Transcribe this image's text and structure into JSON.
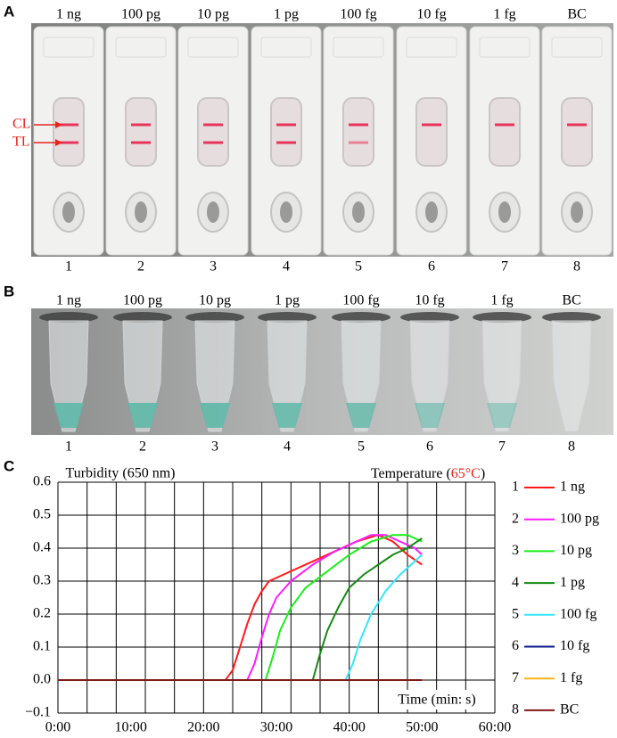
{
  "panels": {
    "a": {
      "label": "A",
      "samples": [
        "1 ng",
        "100 pg",
        "10 pg",
        "1 pg",
        "100 fg",
        "10 fg",
        "1 fg",
        "BC"
      ],
      "numbers": [
        "1",
        "2",
        "3",
        "4",
        "5",
        "6",
        "7",
        "8"
      ],
      "line_labels": [
        "CL",
        "TL"
      ]
    },
    "b": {
      "label": "B",
      "samples": [
        "1 ng",
        "100 pg",
        "10 pg",
        "1 pg",
        "100 fg",
        "10 fg",
        "1 fg",
        "BC"
      ],
      "numbers": [
        "1",
        "2",
        "3",
        "4",
        "5",
        "6",
        "7",
        "8"
      ]
    },
    "c": {
      "label": "C"
    }
  },
  "chart_data": {
    "type": "line",
    "annotations": {
      "turbidity": "Turbidity (650 nm)",
      "temperature": "Temperature (",
      "temperature_value": "65°C",
      "temperature_close": ")",
      "time": "Time (min: s)"
    },
    "temperature_color": "#e8231e",
    "xlim": [
      0,
      60
    ],
    "ylim": [
      -0.1,
      0.6
    ],
    "xticks": [
      {
        "value": 0,
        "label": "0:00"
      },
      {
        "value": 10,
        "label": "10:00"
      },
      {
        "value": 20,
        "label": "20:00"
      },
      {
        "value": 30,
        "label": "30:00"
      },
      {
        "value": 40,
        "label": "40:00"
      },
      {
        "value": 50,
        "label": "50:00"
      },
      {
        "value": 60,
        "label": "60:00"
      }
    ],
    "xgrid": [
      0,
      4,
      8,
      12,
      16,
      20,
      24,
      28,
      32,
      36,
      40,
      44,
      48,
      52,
      56,
      60
    ],
    "yticks": [
      {
        "value": -0.1,
        "label": "−0.1"
      },
      {
        "value": 0,
        "label": "0.0"
      },
      0.1,
      0.2,
      0.3,
      0.4,
      0.5,
      0.6
    ],
    "grid": true,
    "series": [
      {
        "id": "1",
        "name": "1 ng",
        "color": "#ff1a1a",
        "x": [
          0,
          23,
          24,
          25,
          26,
          27,
          28,
          29,
          32,
          35,
          38,
          41,
          44,
          46,
          48,
          50
        ],
        "values": [
          0,
          0,
          0.03,
          0.1,
          0.17,
          0.23,
          0.27,
          0.3,
          0.33,
          0.36,
          0.39,
          0.42,
          0.44,
          0.42,
          0.38,
          0.35
        ]
      },
      {
        "id": "2",
        "name": "100 pg",
        "color": "#ff1aff",
        "x": [
          0,
          26,
          27,
          28,
          29,
          30,
          32,
          35,
          38,
          41,
          43,
          45,
          47,
          49,
          50
        ],
        "values": [
          0,
          0,
          0.05,
          0.13,
          0.2,
          0.25,
          0.3,
          0.35,
          0.39,
          0.42,
          0.44,
          0.44,
          0.42,
          0.4,
          0.38
        ]
      },
      {
        "id": "3",
        "name": "10 pg",
        "color": "#1aee1a",
        "x": [
          0,
          28.5,
          29.5,
          30.5,
          32,
          34,
          37,
          40,
          43,
          46,
          48,
          50
        ],
        "values": [
          0,
          0,
          0.07,
          0.15,
          0.22,
          0.28,
          0.33,
          0.38,
          0.42,
          0.44,
          0.44,
          0.42
        ]
      },
      {
        "id": "4",
        "name": "1 pg",
        "color": "#138a13",
        "x": [
          0,
          35,
          36,
          37,
          38.5,
          40,
          42,
          44,
          46,
          48,
          50
        ],
        "values": [
          0,
          0,
          0.08,
          0.15,
          0.22,
          0.28,
          0.32,
          0.35,
          0.38,
          0.4,
          0.43
        ]
      },
      {
        "id": "5",
        "name": "100 fg",
        "color": "#33e6ff",
        "x": [
          0,
          39.5,
          40.5,
          41.5,
          43,
          45,
          47,
          49,
          50
        ],
        "values": [
          0,
          0,
          0.05,
          0.12,
          0.2,
          0.27,
          0.32,
          0.36,
          0.38
        ]
      },
      {
        "id": "6",
        "name": "10 fg",
        "color": "#0a1a8c",
        "x": [
          0,
          50
        ],
        "values": [
          0,
          0
        ]
      },
      {
        "id": "7",
        "name": "1 fg",
        "color": "#ffb31a",
        "x": [
          0,
          50
        ],
        "values": [
          0,
          0
        ]
      },
      {
        "id": "8",
        "name": "BC",
        "color": "#801a1a",
        "x": [
          0,
          50
        ],
        "values": [
          0,
          0
        ]
      }
    ]
  }
}
